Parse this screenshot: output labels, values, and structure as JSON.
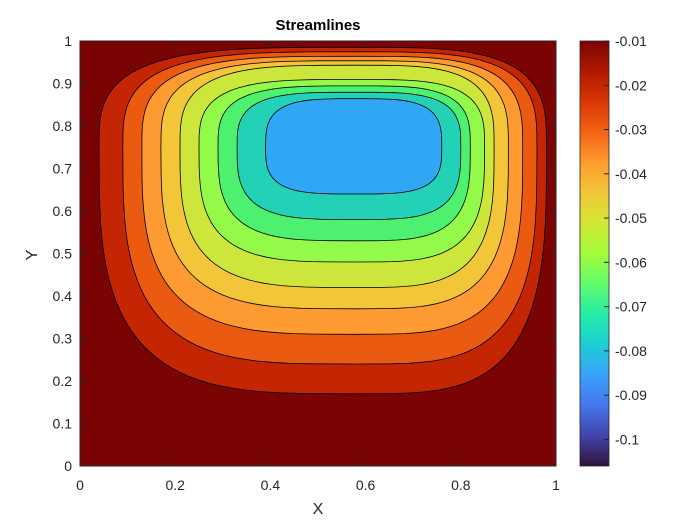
{
  "chart_data": {
    "type": "contour",
    "title": "Streamlines",
    "xlabel": "X",
    "ylabel": "Y",
    "xlim": [
      0,
      1
    ],
    "ylim": [
      0,
      1
    ],
    "x_ticks": [
      "0",
      "0.2",
      "0.4",
      "0.6",
      "0.8",
      "1"
    ],
    "y_ticks": [
      "0",
      "0.1",
      "0.2",
      "0.3",
      "0.4",
      "0.5",
      "0.6",
      "0.7",
      "0.8",
      "0.9",
      "1"
    ],
    "grid": false,
    "vortex_center": {
      "x": 0.58,
      "y": 0.75
    },
    "value_range": [
      -0.106,
      -0.01
    ],
    "levels": [
      -0.01,
      -0.02,
      -0.03,
      -0.04,
      -0.05,
      -0.06,
      -0.07,
      -0.08,
      -0.09,
      -0.1
    ],
    "contours": [
      {
        "level": -0.02,
        "x_extent": [
          0.04,
          0.98
        ],
        "y_bottom": 0.17
      },
      {
        "level": -0.03,
        "x_extent": [
          0.09,
          0.96
        ],
        "y_bottom": 0.24
      },
      {
        "level": -0.04,
        "x_extent": [
          0.13,
          0.93
        ],
        "y_bottom": 0.31
      },
      {
        "level": -0.05,
        "x_extent": [
          0.17,
          0.9
        ],
        "y_bottom": 0.37
      },
      {
        "level": -0.06,
        "x_extent": [
          0.21,
          0.87
        ],
        "y_bottom": 0.42
      },
      {
        "level": -0.07,
        "x_extent": [
          0.25,
          0.85
        ],
        "y_bottom": 0.48
      },
      {
        "level": -0.08,
        "x_extent": [
          0.29,
          0.82
        ],
        "y_bottom": 0.53
      },
      {
        "level": -0.09,
        "x_extent": [
          0.33,
          0.8
        ],
        "y_bottom": 0.58
      },
      {
        "level": -0.1,
        "x_extent": [
          0.39,
          0.76
        ],
        "y_bottom": 0.64
      }
    ],
    "colorbar": {
      "ticks": [
        "-0.01",
        "-0.02",
        "-0.03",
        "-0.04",
        "-0.05",
        "-0.06",
        "-0.07",
        "-0.08",
        "-0.09",
        "-0.1"
      ],
      "colors": [
        "#30123b",
        "#4145ab",
        "#4675ed",
        "#39a2fc",
        "#1bcfd4",
        "#24eca6",
        "#61fc6c",
        "#a4fc3b",
        "#d1e834",
        "#f3c63a",
        "#fe9b2d",
        "#f36315",
        "#d93806",
        "#b11901",
        "#7a0402"
      ]
    },
    "band_colors": [
      "#7a0403",
      "#c42503",
      "#ea5a11",
      "#fd9a31",
      "#f3c63a",
      "#cde63c",
      "#93fa4a",
      "#4ef070",
      "#23d2b6",
      "#2fa7f5",
      "#4478e5",
      "#3e4a9f",
      "#311b4d"
    ]
  }
}
